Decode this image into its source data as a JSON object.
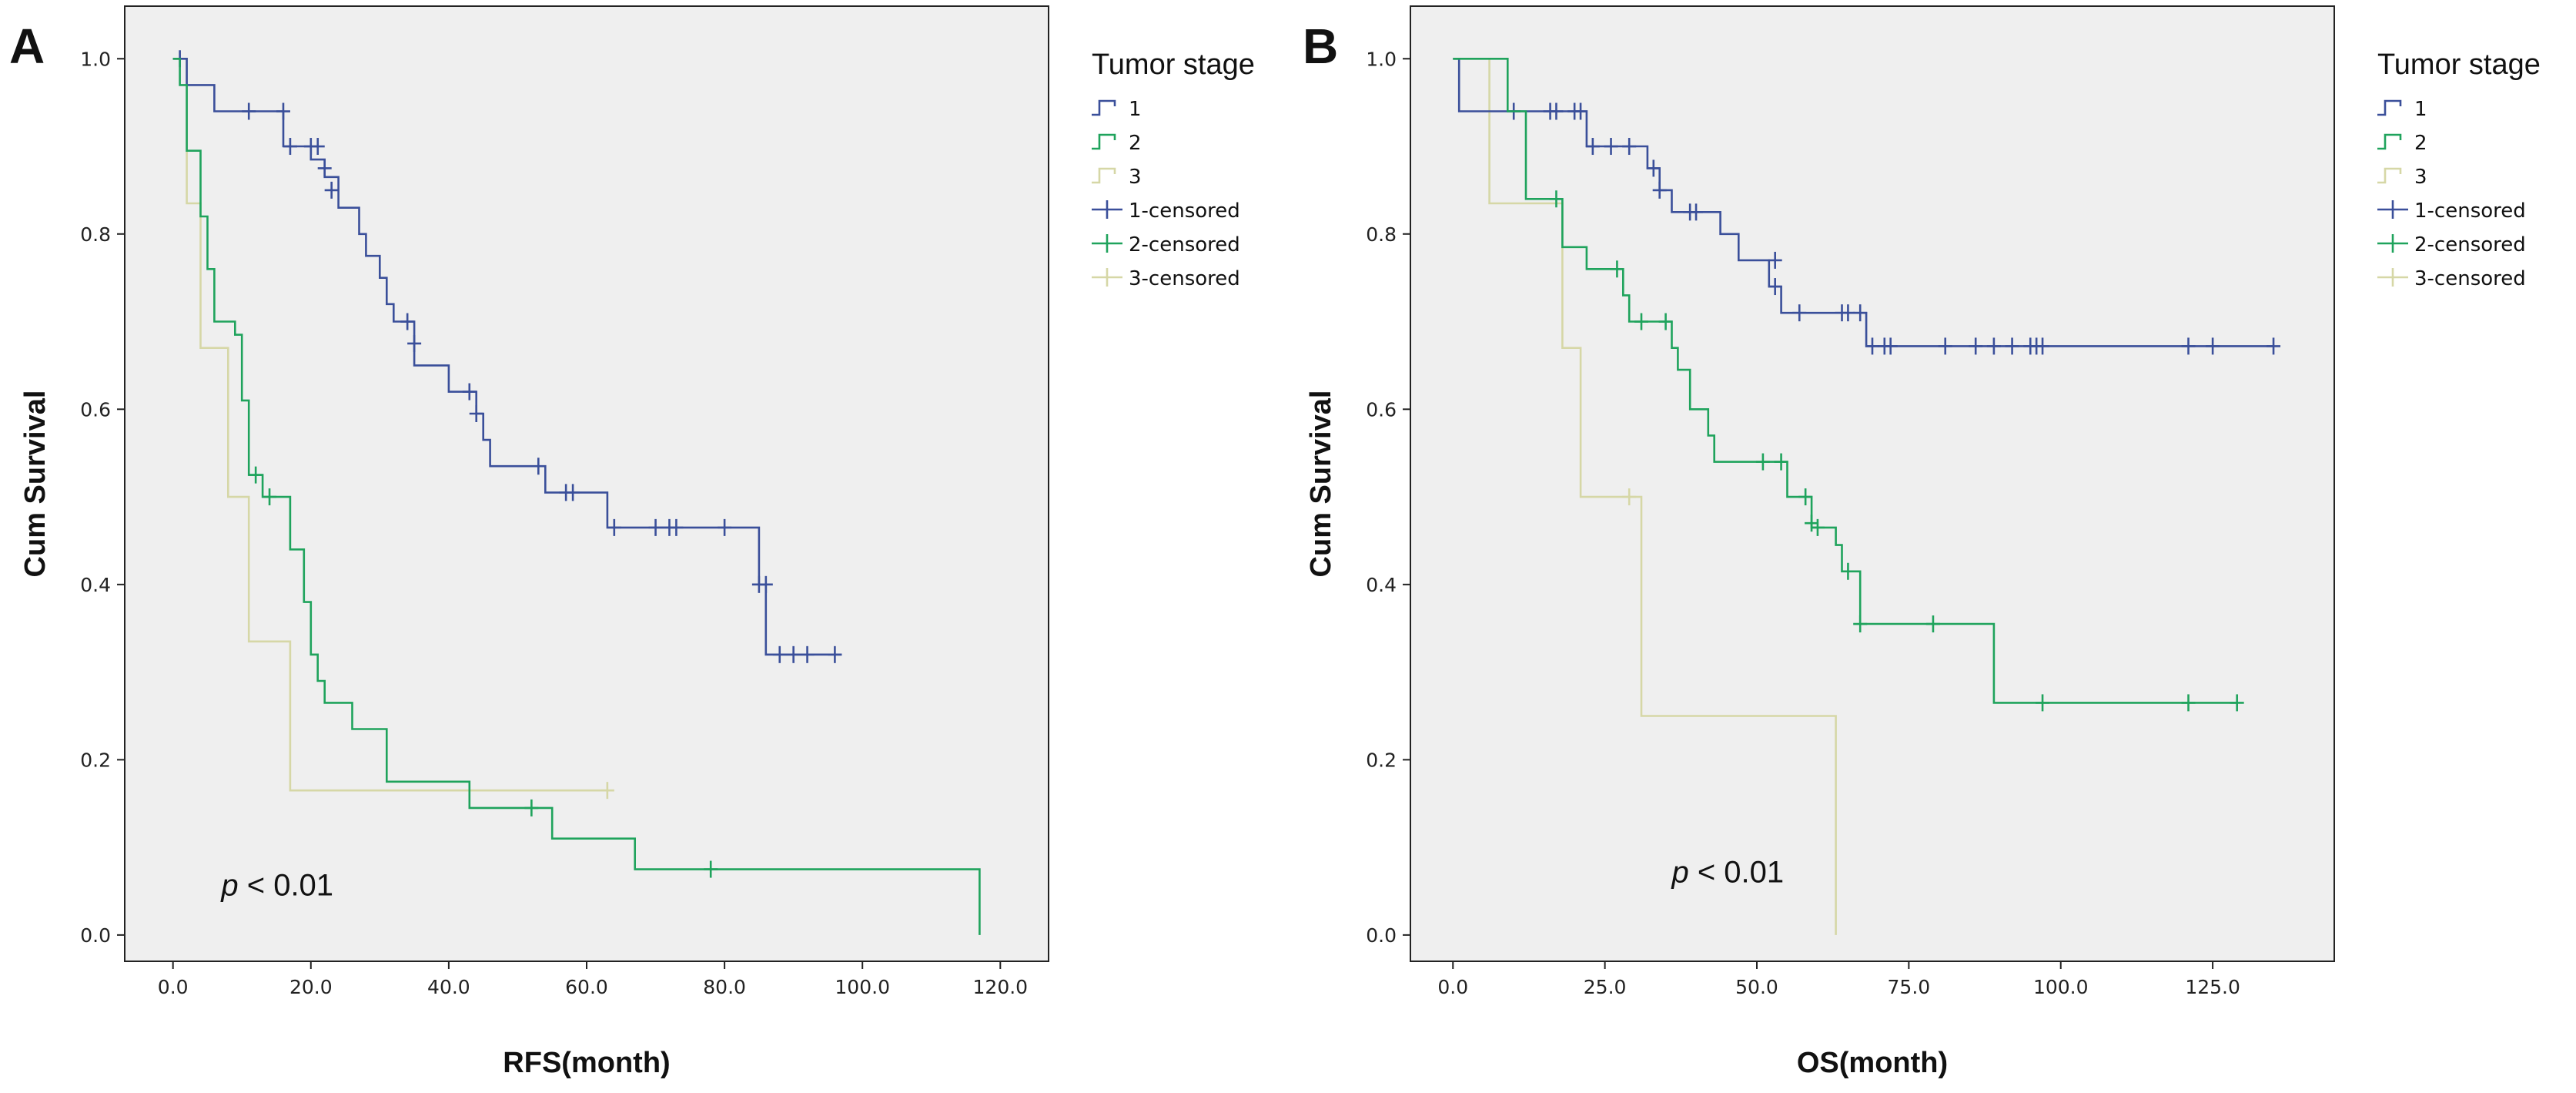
{
  "chart_data": [
    {
      "panel": "A",
      "type": "line",
      "step": true,
      "xlabel": "RFS(month)",
      "ylabel": "Cum Survival",
      "xlim": [
        -7,
        127
      ],
      "ylim": [
        -0.03,
        1.06
      ],
      "xticks": [
        "0.0",
        "20.0",
        "40.0",
        "60.0",
        "80.0",
        "100.0",
        "120.0"
      ],
      "xtick_values": [
        0,
        20,
        40,
        60,
        80,
        100,
        120
      ],
      "yticks": [
        "0.0",
        "0.2",
        "0.4",
        "0.6",
        "0.8",
        "1.0"
      ],
      "ytick_values": [
        0,
        0.2,
        0.4,
        0.6,
        0.8,
        1.0
      ],
      "annotation": {
        "p": "p",
        "rest": " < 0.01",
        "x": 7,
        "y": 0.045
      },
      "legend": {
        "title": "Tumor stage",
        "items": [
          "1",
          "2",
          "3",
          "1-censored",
          "2-censored",
          "3-censored"
        ]
      },
      "series": [
        {
          "name": "1",
          "color": "#3a4f9a",
          "points": [
            [
              0,
              1.0
            ],
            [
              2,
              1.0
            ],
            [
              2,
              0.97
            ],
            [
              6,
              0.97
            ],
            [
              6,
              0.94
            ],
            [
              16,
              0.94
            ],
            [
              16,
              0.9
            ],
            [
              20,
              0.9
            ],
            [
              20,
              0.885
            ],
            [
              22,
              0.885
            ],
            [
              22,
              0.865
            ],
            [
              24,
              0.865
            ],
            [
              24,
              0.83
            ],
            [
              27,
              0.83
            ],
            [
              27,
              0.8
            ],
            [
              28,
              0.8
            ],
            [
              28,
              0.775
            ],
            [
              30,
              0.775
            ],
            [
              30,
              0.75
            ],
            [
              31,
              0.75
            ],
            [
              31,
              0.72
            ],
            [
              32,
              0.72
            ],
            [
              32,
              0.7
            ],
            [
              35,
              0.7
            ],
            [
              35,
              0.65
            ],
            [
              40,
              0.65
            ],
            [
              40,
              0.62
            ],
            [
              44,
              0.62
            ],
            [
              44,
              0.595
            ],
            [
              45,
              0.595
            ],
            [
              45,
              0.565
            ],
            [
              46,
              0.565
            ],
            [
              46,
              0.535
            ],
            [
              54,
              0.535
            ],
            [
              54,
              0.505
            ],
            [
              63,
              0.505
            ],
            [
              63,
              0.465
            ],
            [
              85,
              0.465
            ],
            [
              85,
              0.4
            ],
            [
              86,
              0.4
            ],
            [
              86,
              0.32
            ],
            [
              97,
              0.32
            ]
          ],
          "censored": [
            [
              1,
              1.0
            ],
            [
              11,
              0.94
            ],
            [
              16,
              0.94
            ],
            [
              17,
              0.9
            ],
            [
              20,
              0.9
            ],
            [
              21,
              0.9
            ],
            [
              22,
              0.875
            ],
            [
              23,
              0.85
            ],
            [
              34,
              0.7
            ],
            [
              35,
              0.675
            ],
            [
              43,
              0.62
            ],
            [
              44,
              0.595
            ],
            [
              53,
              0.535
            ],
            [
              57,
              0.505
            ],
            [
              58,
              0.505
            ],
            [
              64,
              0.465
            ],
            [
              70,
              0.465
            ],
            [
              72,
              0.465
            ],
            [
              73,
              0.465
            ],
            [
              80,
              0.465
            ],
            [
              85,
              0.4
            ],
            [
              86,
              0.4
            ],
            [
              88,
              0.32
            ],
            [
              90,
              0.32
            ],
            [
              92,
              0.32
            ],
            [
              96,
              0.32
            ]
          ]
        },
        {
          "name": "2",
          "color": "#1fa35c",
          "points": [
            [
              0,
              1.0
            ],
            [
              1,
              1.0
            ],
            [
              1,
              0.97
            ],
            [
              2,
              0.97
            ],
            [
              2,
              0.895
            ],
            [
              4,
              0.895
            ],
            [
              4,
              0.82
            ],
            [
              5,
              0.82
            ],
            [
              5,
              0.76
            ],
            [
              6,
              0.76
            ],
            [
              6,
              0.7
            ],
            [
              9,
              0.7
            ],
            [
              9,
              0.685
            ],
            [
              10,
              0.685
            ],
            [
              10,
              0.61
            ],
            [
              11,
              0.61
            ],
            [
              11,
              0.525
            ],
            [
              13,
              0.525
            ],
            [
              13,
              0.5
            ],
            [
              17,
              0.5
            ],
            [
              17,
              0.44
            ],
            [
              19,
              0.44
            ],
            [
              19,
              0.38
            ],
            [
              20,
              0.38
            ],
            [
              20,
              0.32
            ],
            [
              21,
              0.32
            ],
            [
              21,
              0.29
            ],
            [
              22,
              0.29
            ],
            [
              22,
              0.265
            ],
            [
              26,
              0.265
            ],
            [
              26,
              0.235
            ],
            [
              31,
              0.235
            ],
            [
              31,
              0.175
            ],
            [
              43,
              0.175
            ],
            [
              43,
              0.145
            ],
            [
              55,
              0.145
            ],
            [
              55,
              0.11
            ],
            [
              67,
              0.11
            ],
            [
              67,
              0.075
            ],
            [
              117,
              0.075
            ],
            [
              117,
              0.0
            ]
          ],
          "censored": [
            [
              12,
              0.525
            ],
            [
              14,
              0.5
            ],
            [
              52,
              0.145
            ],
            [
              78,
              0.075
            ]
          ]
        },
        {
          "name": "3",
          "color": "#d6d7a6",
          "points": [
            [
              0,
              1.0
            ],
            [
              2,
              1.0
            ],
            [
              2,
              0.835
            ],
            [
              4,
              0.835
            ],
            [
              4,
              0.67
            ],
            [
              8,
              0.67
            ],
            [
              8,
              0.5
            ],
            [
              11,
              0.5
            ],
            [
              11,
              0.335
            ],
            [
              17,
              0.335
            ],
            [
              17,
              0.165
            ],
            [
              63,
              0.165
            ]
          ],
          "censored": [
            [
              63,
              0.165
            ]
          ]
        }
      ]
    },
    {
      "panel": "B",
      "type": "line",
      "step": true,
      "xlabel": "OS(month)",
      "ylabel": "Cum Survival",
      "xlim": [
        -7,
        145
      ],
      "ylim": [
        -0.03,
        1.06
      ],
      "xticks": [
        "0.0",
        "25.0",
        "50.0",
        "75.0",
        "100.0",
        "125.0"
      ],
      "xtick_values": [
        0,
        25,
        50,
        75,
        100,
        125
      ],
      "yticks": [
        "0.0",
        "0.2",
        "0.4",
        "0.6",
        "0.8",
        "1.0"
      ],
      "ytick_values": [
        0,
        0.2,
        0.4,
        0.6,
        0.8,
        1.0
      ],
      "annotation": {
        "p": "p",
        "rest": " < 0.01",
        "x": 36,
        "y": 0.06
      },
      "legend": {
        "title": "Tumor stage",
        "items": [
          "1",
          "2",
          "3",
          "1-censored",
          "2-censored",
          "3-censored"
        ]
      },
      "series": [
        {
          "name": "1",
          "color": "#3a4f9a",
          "points": [
            [
              0,
              1.0
            ],
            [
              1,
              1.0
            ],
            [
              1,
              0.94
            ],
            [
              22,
              0.94
            ],
            [
              22,
              0.9
            ],
            [
              32,
              0.9
            ],
            [
              32,
              0.875
            ],
            [
              34,
              0.875
            ],
            [
              34,
              0.85
            ],
            [
              36,
              0.85
            ],
            [
              36,
              0.825
            ],
            [
              44,
              0.825
            ],
            [
              44,
              0.8
            ],
            [
              47,
              0.8
            ],
            [
              47,
              0.77
            ],
            [
              52,
              0.77
            ],
            [
              52,
              0.74
            ],
            [
              54,
              0.74
            ],
            [
              54,
              0.71
            ],
            [
              68,
              0.71
            ],
            [
              68,
              0.672
            ],
            [
              135,
              0.672
            ]
          ],
          "censored": [
            [
              10,
              0.94
            ],
            [
              16,
              0.94
            ],
            [
              17,
              0.94
            ],
            [
              20,
              0.94
            ],
            [
              21,
              0.94
            ],
            [
              23,
              0.9
            ],
            [
              26,
              0.9
            ],
            [
              29,
              0.9
            ],
            [
              33,
              0.875
            ],
            [
              34,
              0.85
            ],
            [
              39,
              0.825
            ],
            [
              40,
              0.825
            ],
            [
              53,
              0.77
            ],
            [
              53,
              0.74
            ],
            [
              57,
              0.71
            ],
            [
              64,
              0.71
            ],
            [
              65,
              0.71
            ],
            [
              67,
              0.71
            ],
            [
              69,
              0.672
            ],
            [
              71,
              0.672
            ],
            [
              72,
              0.672
            ],
            [
              81,
              0.672
            ],
            [
              86,
              0.672
            ],
            [
              89,
              0.672
            ],
            [
              92,
              0.672
            ],
            [
              95,
              0.672
            ],
            [
              96,
              0.672
            ],
            [
              97,
              0.672
            ],
            [
              121,
              0.672
            ],
            [
              125,
              0.672
            ],
            [
              135,
              0.672
            ]
          ]
        },
        {
          "name": "2",
          "color": "#1fa35c",
          "points": [
            [
              0,
              1.0
            ],
            [
              9,
              1.0
            ],
            [
              9,
              0.94
            ],
            [
              12,
              0.94
            ],
            [
              12,
              0.84
            ],
            [
              18,
              0.84
            ],
            [
              18,
              0.785
            ],
            [
              22,
              0.785
            ],
            [
              22,
              0.76
            ],
            [
              28,
              0.76
            ],
            [
              28,
              0.73
            ],
            [
              29,
              0.73
            ],
            [
              29,
              0.7
            ],
            [
              36,
              0.7
            ],
            [
              36,
              0.67
            ],
            [
              37,
              0.67
            ],
            [
              37,
              0.645
            ],
            [
              39,
              0.645
            ],
            [
              39,
              0.6
            ],
            [
              42,
              0.6
            ],
            [
              42,
              0.57
            ],
            [
              43,
              0.57
            ],
            [
              43,
              0.54
            ],
            [
              55,
              0.54
            ],
            [
              55,
              0.5
            ],
            [
              59,
              0.5
            ],
            [
              59,
              0.465
            ],
            [
              63,
              0.465
            ],
            [
              63,
              0.445
            ],
            [
              64,
              0.445
            ],
            [
              64,
              0.415
            ],
            [
              67,
              0.415
            ],
            [
              67,
              0.355
            ],
            [
              89,
              0.355
            ],
            [
              89,
              0.265
            ],
            [
              129,
              0.265
            ]
          ],
          "censored": [
            [
              17,
              0.84
            ],
            [
              27,
              0.76
            ],
            [
              31,
              0.7
            ],
            [
              35,
              0.7
            ],
            [
              51,
              0.54
            ],
            [
              54,
              0.54
            ],
            [
              58,
              0.5
            ],
            [
              59,
              0.47
            ],
            [
              60,
              0.465
            ],
            [
              65,
              0.415
            ],
            [
              67,
              0.355
            ],
            [
              79,
              0.355
            ],
            [
              97,
              0.265
            ],
            [
              121,
              0.265
            ],
            [
              129,
              0.265
            ]
          ]
        },
        {
          "name": "3",
          "color": "#d6d7a6",
          "points": [
            [
              0,
              1.0
            ],
            [
              6,
              1.0
            ],
            [
              6,
              0.835
            ],
            [
              18,
              0.835
            ],
            [
              18,
              0.67
            ],
            [
              21,
              0.67
            ],
            [
              21,
              0.5
            ],
            [
              31,
              0.5
            ],
            [
              31,
              0.25
            ],
            [
              63,
              0.25
            ],
            [
              63,
              0.0
            ]
          ],
          "censored": [
            [
              29,
              0.5
            ]
          ]
        }
      ]
    }
  ]
}
